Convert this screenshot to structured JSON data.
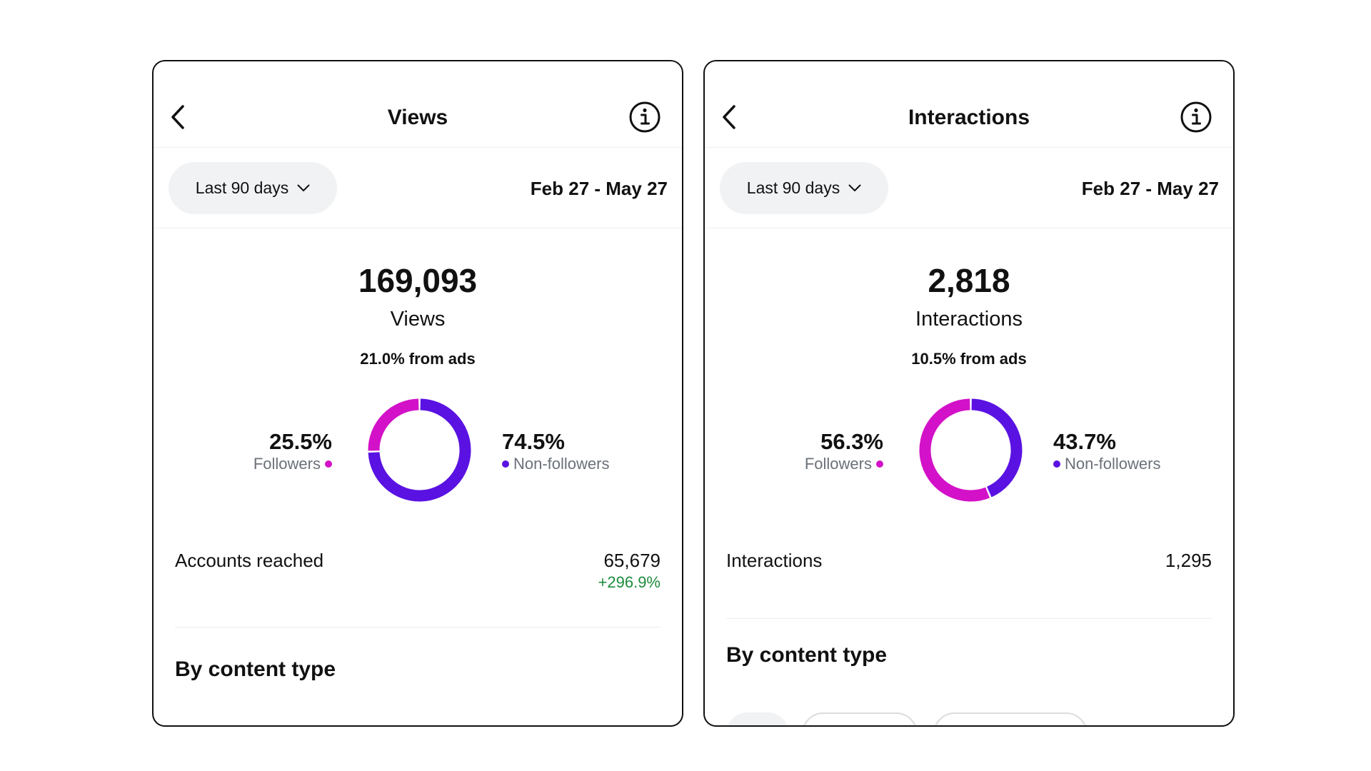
{
  "colors": {
    "followers": "#d311c8",
    "non_followers": "#5a12e2",
    "positive_change": "#1e8c3e"
  },
  "panels": [
    {
      "header": {
        "back_icon": "chevron-left-icon",
        "title": "Views",
        "info_icon": "info-circle-icon"
      },
      "range": {
        "label": "Last 90 days",
        "dropdown_icon": "chevron-down-icon",
        "dates": "Feb 27 - May 27"
      },
      "total": "169,093",
      "total_label": "Views",
      "ads_note": "21.0% from ads",
      "followers": {
        "pct": "25.5%",
        "label": "Followers",
        "fraction": 0.255
      },
      "non_followers": {
        "pct": "74.5%",
        "label": "Non-followers",
        "fraction": 0.745
      },
      "metric": {
        "name": "Accounts reached",
        "value": "65,679",
        "change": "+296.9%"
      },
      "section_title": "By content type"
    },
    {
      "header": {
        "back_icon": "chevron-left-icon",
        "title": "Interactions",
        "info_icon": "info-circle-icon"
      },
      "range": {
        "label": "Last 90 days",
        "dropdown_icon": "chevron-down-icon",
        "dates": "Feb 27 - May 27"
      },
      "total": "2,818",
      "total_label": "Interactions",
      "ads_note": "10.5% from ads",
      "followers": {
        "pct": "56.3%",
        "label": "Followers",
        "fraction": 0.563
      },
      "non_followers": {
        "pct": "43.7%",
        "label": "Non-followers",
        "fraction": 0.437
      },
      "metric": {
        "name": "Interactions",
        "value": "1,295"
      },
      "section_title": "By content type"
    }
  ]
}
